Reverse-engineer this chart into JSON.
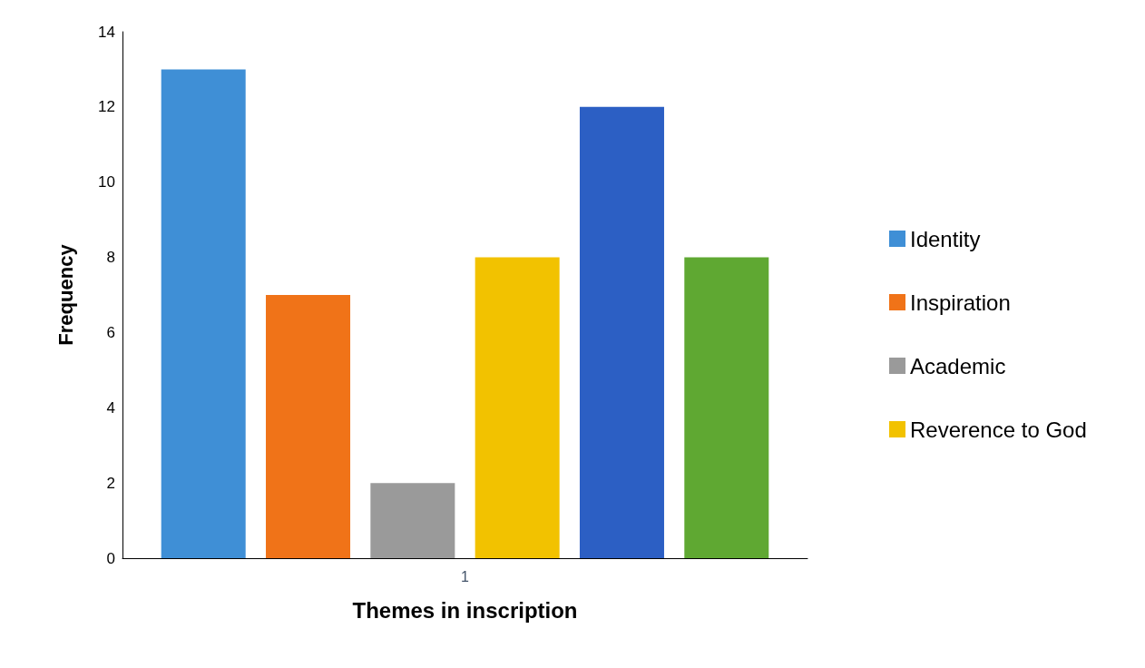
{
  "chart_data": {
    "type": "bar",
    "xlabel": "Themes in inscription",
    "ylabel": "Frequency",
    "categories": [
      "1"
    ],
    "series": [
      {
        "name": "Identity",
        "color": "#3f8fd6",
        "values": [
          13
        ]
      },
      {
        "name": "Inspiration",
        "color": "#f07318",
        "values": [
          7
        ]
      },
      {
        "name": "Academic",
        "color": "#9a9a9a",
        "values": [
          2
        ]
      },
      {
        "name": "Reverence to God",
        "color": "#f2c200",
        "values": [
          8
        ]
      },
      {
        "color": "#2c5fc4",
        "values": [
          12
        ]
      },
      {
        "color": "#5fa832",
        "values": [
          8
        ]
      }
    ],
    "ylim": [
      0,
      14
    ],
    "yticks": [
      0,
      2,
      4,
      6,
      8,
      10,
      12,
      14
    ],
    "grid": false,
    "legend": "right"
  }
}
